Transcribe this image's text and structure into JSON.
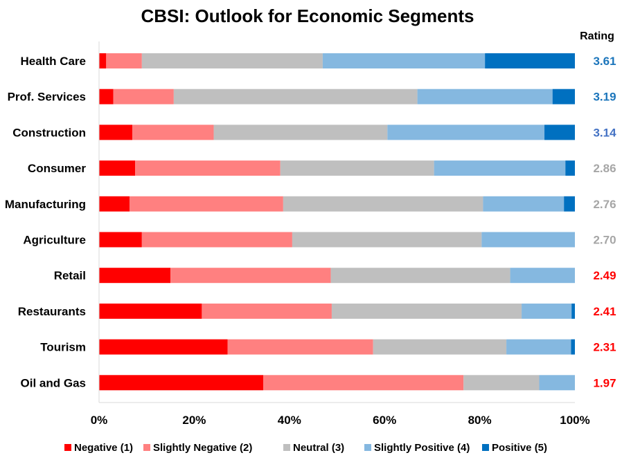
{
  "chart_data": {
    "type": "bar",
    "orientation": "horizontal",
    "stacked": "percent",
    "title": "CBSI: Outlook for Economic Segments",
    "rating_header": "Rating",
    "categories": [
      "Health Care",
      "Prof. Services",
      "Construction",
      "Consumer",
      "Manufacturing",
      "Agriculture",
      "Retail",
      "Restaurants",
      "Tourism",
      "Oil and Gas"
    ],
    "ratings": [
      "3.61",
      "3.19",
      "3.14",
      "2.86",
      "2.76",
      "2.70",
      "2.49",
      "2.41",
      "2.31",
      "1.97"
    ],
    "rating_colors": [
      "#1B75BB",
      "#1B75BB",
      "#4472C4",
      "#A6A6A6",
      "#A6A6A6",
      "#A6A6A6",
      "#FF0000",
      "#FF0000",
      "#FF0000",
      "#FF0000"
    ],
    "series": [
      {
        "name": "Negative (1)",
        "color": "#FF0000",
        "values": [
          1.5,
          3.0,
          7.0,
          7.6,
          6.4,
          9.0,
          15.0,
          21.6,
          27.0,
          34.5
        ]
      },
      {
        "name": "Slightly Negative (2)",
        "color": "#FF8080",
        "values": [
          7.5,
          12.7,
          17.1,
          30.5,
          32.3,
          31.6,
          33.7,
          27.3,
          30.6,
          42.1
        ]
      },
      {
        "name": "Neutral (3)",
        "color": "#BFBFBF",
        "values": [
          38.0,
          51.2,
          36.5,
          32.3,
          42.0,
          39.8,
          37.7,
          39.9,
          28.0,
          15.9
        ]
      },
      {
        "name": "Slightly Positive (4)",
        "color": "#85B8E0",
        "values": [
          34.1,
          28.4,
          33.0,
          27.6,
          17.0,
          19.6,
          13.6,
          10.5,
          13.6,
          7.5
        ]
      },
      {
        "name": "Positive (5)",
        "color": "#0070C0",
        "values": [
          18.9,
          4.7,
          6.4,
          2.0,
          2.3,
          0.0,
          0.0,
          0.7,
          0.8,
          0.0
        ]
      }
    ],
    "xlim": [
      0,
      100
    ],
    "xticks": [
      "0%",
      "20%",
      "40%",
      "60%",
      "80%",
      "100%"
    ],
    "xlabel": "",
    "ylabel": "",
    "grid": false,
    "legend": "bottom"
  }
}
